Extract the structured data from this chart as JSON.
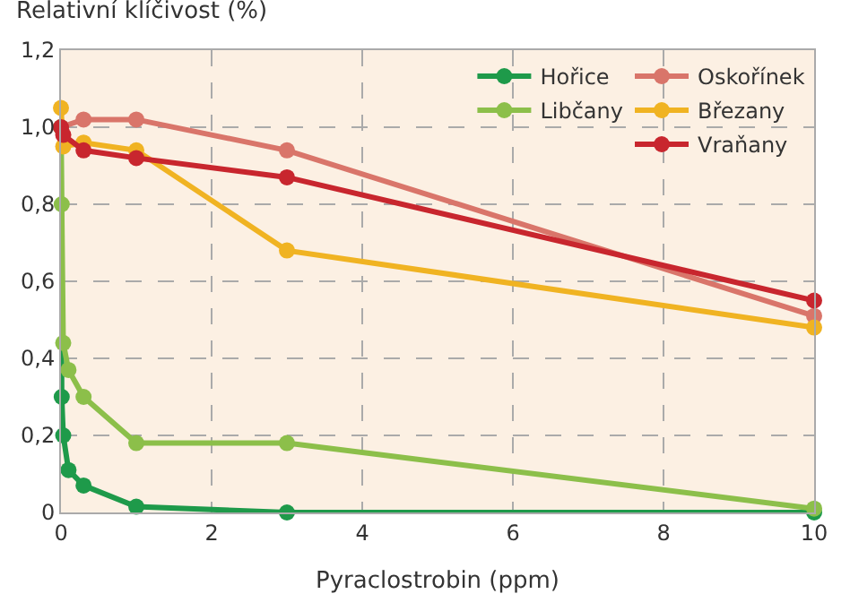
{
  "chart_data": {
    "type": "line",
    "ylabel": "Relativní klíčivost (%)",
    "xlabel": "Pyraclostrobin (ppm)",
    "xlim": [
      0,
      10
    ],
    "xticks": [
      0,
      2,
      4,
      6,
      8,
      10
    ],
    "ylim": [
      0,
      1.2
    ],
    "yticks": [
      {
        "value": 0,
        "label": "0"
      },
      {
        "value": 0.2,
        "label": "0,2"
      },
      {
        "value": 0.4,
        "label": "0,4"
      },
      {
        "value": 0.6,
        "label": "0,6"
      },
      {
        "value": 0.8,
        "label": "0,8"
      },
      {
        "value": 1.0,
        "label": "1,0"
      },
      {
        "value": 1.2,
        "label": "1,2"
      }
    ],
    "grid": true,
    "legend": "top right",
    "marker": "circle",
    "line_style": "solid",
    "series": [
      {
        "name": "Hořice",
        "color": "#1e9a4a",
        "x": [
          0,
          0.01,
          0.03,
          0.1,
          0.3,
          1,
          3,
          10
        ],
        "values": [
          1.0,
          0.3,
          0.2,
          0.11,
          0.07,
          0.015,
          0.0,
          0.0
        ]
      },
      {
        "name": "Libčany",
        "color": "#8cbf4a",
        "x": [
          0,
          0.01,
          0.03,
          0.1,
          0.3,
          1,
          3,
          10
        ],
        "values": [
          1.0,
          0.8,
          0.44,
          0.37,
          0.3,
          0.18,
          0.18,
          0.01
        ]
      },
      {
        "name": "Oskořínek",
        "color": "#d9756a",
        "x": [
          0,
          0.3,
          1,
          3,
          10
        ],
        "values": [
          1.0,
          1.02,
          1.02,
          0.94,
          0.51
        ]
      },
      {
        "name": "Březany",
        "color": "#f0b322",
        "x": [
          0,
          0.03,
          0.3,
          1,
          3,
          10
        ],
        "values": [
          1.05,
          0.95,
          0.96,
          0.94,
          0.68,
          0.48
        ]
      },
      {
        "name": "Vraňany",
        "color": "#c8262e",
        "x": [
          0,
          0.03,
          0.3,
          1,
          3,
          10
        ],
        "values": [
          1.0,
          0.98,
          0.94,
          0.92,
          0.87,
          0.55
        ]
      }
    ]
  }
}
